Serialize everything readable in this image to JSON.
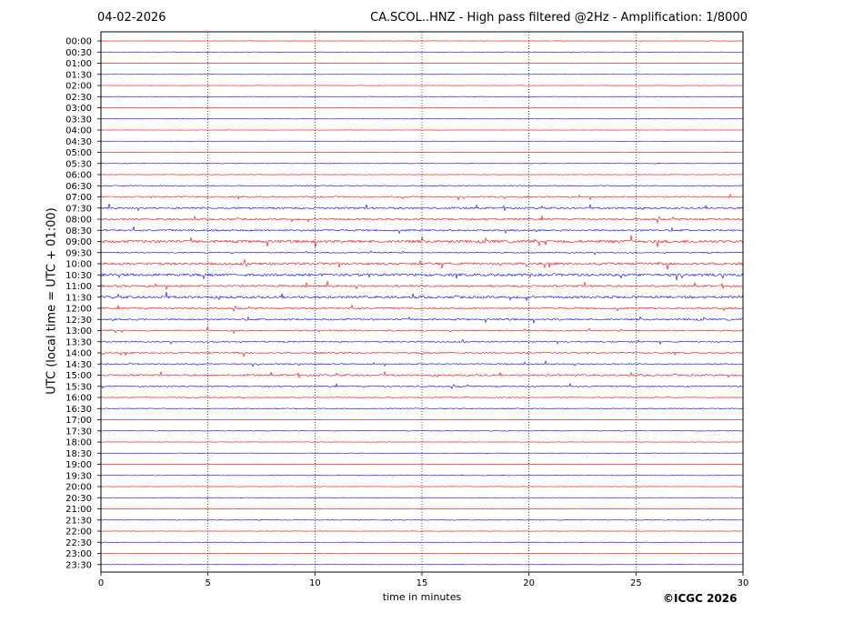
{
  "header": {
    "date": "04-02-2026",
    "title": "CA.SCOL..HNZ - High pass filtered @2Hz - Amplification: 1/8000"
  },
  "footer": {
    "copyright": "©ICGC 2026"
  },
  "chart_data": {
    "type": "line",
    "title": "CA.SCOL..HNZ - High pass filtered @2Hz - Amplification: 1/8000",
    "xlabel": "time in minutes",
    "ylabel": "UTC (local time = UTC + 01:00)",
    "xlim": [
      0,
      30
    ],
    "xticks": [
      0,
      5,
      10,
      15,
      20,
      25,
      30
    ],
    "grid": "vertical dotted at 5, 10, 15, 20, 25",
    "trace_colors": [
      "#ff0000",
      "#0000ff"
    ],
    "rows": [
      {
        "label": "00:00",
        "color": "#ff0000",
        "amp": 0.4
      },
      {
        "label": "00:30",
        "color": "#0000ff",
        "amp": 0.4
      },
      {
        "label": "01:00",
        "color": "#ff0000",
        "amp": 0.3
      },
      {
        "label": "01:30",
        "color": "#0000ff",
        "amp": 0.3
      },
      {
        "label": "02:00",
        "color": "#ff0000",
        "amp": 0.3
      },
      {
        "label": "02:30",
        "color": "#0000ff",
        "amp": 0.4
      },
      {
        "label": "03:00",
        "color": "#ff0000",
        "amp": 0.3
      },
      {
        "label": "03:30",
        "color": "#0000ff",
        "amp": 0.3
      },
      {
        "label": "04:00",
        "color": "#ff0000",
        "amp": 0.3
      },
      {
        "label": "04:30",
        "color": "#0000ff",
        "amp": 0.3
      },
      {
        "label": "05:00",
        "color": "#ff0000",
        "amp": 0.3
      },
      {
        "label": "05:30",
        "color": "#0000ff",
        "amp": 0.4
      },
      {
        "label": "06:00",
        "color": "#ff0000",
        "amp": 0.5
      },
      {
        "label": "06:30",
        "color": "#0000ff",
        "amp": 1.0
      },
      {
        "label": "07:00",
        "color": "#ff0000",
        "amp": 1.5
      },
      {
        "label": "07:30",
        "color": "#0000ff",
        "amp": 1.8
      },
      {
        "label": "08:00",
        "color": "#ff0000",
        "amp": 2.0
      },
      {
        "label": "08:30",
        "color": "#0000ff",
        "amp": 1.8
      },
      {
        "label": "09:00",
        "color": "#ff0000",
        "amp": 3.0
      },
      {
        "label": "09:30",
        "color": "#0000ff",
        "amp": 1.2
      },
      {
        "label": "10:00",
        "color": "#ff0000",
        "amp": 2.5
      },
      {
        "label": "10:30",
        "color": "#0000ff",
        "amp": 2.8
      },
      {
        "label": "11:00",
        "color": "#ff0000",
        "amp": 2.0
      },
      {
        "label": "11:30",
        "color": "#0000ff",
        "amp": 2.6
      },
      {
        "label": "12:00",
        "color": "#ff0000",
        "amp": 1.6
      },
      {
        "label": "12:30",
        "color": "#0000ff",
        "amp": 1.8
      },
      {
        "label": "13:00",
        "color": "#ff0000",
        "amp": 1.4
      },
      {
        "label": "13:30",
        "color": "#0000ff",
        "amp": 1.3
      },
      {
        "label": "14:00",
        "color": "#ff0000",
        "amp": 1.5
      },
      {
        "label": "14:30",
        "color": "#0000ff",
        "amp": 1.2
      },
      {
        "label": "15:00",
        "color": "#ff0000",
        "amp": 1.8
      },
      {
        "label": "15:30",
        "color": "#0000ff",
        "amp": 1.4
      },
      {
        "label": "16:00",
        "color": "#ff0000",
        "amp": 0.9
      },
      {
        "label": "16:30",
        "color": "#0000ff",
        "amp": 1.0
      },
      {
        "label": "17:00",
        "color": "#ff0000",
        "amp": 0.6
      },
      {
        "label": "17:30",
        "color": "#0000ff",
        "amp": 0.7
      },
      {
        "label": "18:00",
        "color": "#ff0000",
        "amp": 0.5
      },
      {
        "label": "18:30",
        "color": "#0000ff",
        "amp": 0.4
      },
      {
        "label": "19:00",
        "color": "#ff0000",
        "amp": 0.5
      },
      {
        "label": "19:30",
        "color": "#0000ff",
        "amp": 0.5
      },
      {
        "label": "20:00",
        "color": "#ff0000",
        "amp": 0.4
      },
      {
        "label": "20:30",
        "color": "#0000ff",
        "amp": 0.4
      },
      {
        "label": "21:00",
        "color": "#ff0000",
        "amp": 0.4
      },
      {
        "label": "21:30",
        "color": "#0000ff",
        "amp": 0.6
      },
      {
        "label": "22:00",
        "color": "#ff0000",
        "amp": 0.4
      },
      {
        "label": "22:30",
        "color": "#0000ff",
        "amp": 0.4
      },
      {
        "label": "23:00",
        "color": "#ff0000",
        "amp": 0.4
      },
      {
        "label": "23:30",
        "color": "#0000ff",
        "amp": 0.4
      }
    ]
  }
}
